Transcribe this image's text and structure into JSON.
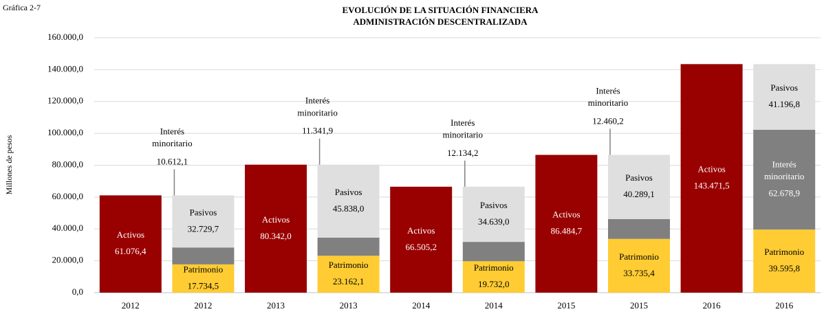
{
  "chart_data": {
    "type": "bar",
    "figure_label": "Gráfica 2-7",
    "title": "EVOLUCIÓN  DE LA SITUACIÓN  FINANCIERA",
    "subtitle": "ADMINISTRACIÓN  DESCENTRALIZADA",
    "ylabel": "Millones  de pesos",
    "stacked": true,
    "categories": [
      "2012",
      "2012",
      "2013",
      "2013",
      "2014",
      "2014",
      "2015",
      "2015",
      "2016",
      "2016"
    ],
    "series": [
      {
        "name": "Activos",
        "color": "#990000",
        "values": [
          61076.4,
          null,
          80342.0,
          null,
          66505.2,
          null,
          86484.7,
          null,
          143471.5,
          null
        ],
        "value_labels": [
          "61.076,4",
          null,
          "80.342,0",
          null,
          "66.505,2",
          null,
          "86.484,7",
          null,
          "143.471,5",
          null
        ]
      },
      {
        "name": "Patrimonio",
        "color": "#ffcc33",
        "values": [
          null,
          17734.5,
          null,
          23162.1,
          null,
          19732.0,
          null,
          33735.4,
          null,
          39595.8
        ],
        "value_labels": [
          null,
          "17.734,5",
          null,
          "23.162,1",
          null,
          "19.732,0",
          null,
          "33.735,4",
          null,
          "39.595,8"
        ]
      },
      {
        "name": "Interés minoritario",
        "color": "#808080",
        "values": [
          null,
          10612.1,
          null,
          11341.9,
          null,
          12134.2,
          null,
          12460.2,
          null,
          62678.9
        ],
        "value_labels": [
          null,
          "10.612,1",
          null,
          "11.341,9",
          null,
          "12.134,2",
          null,
          "12.460,2",
          null,
          "62.678,9"
        ]
      },
      {
        "name": "Pasivos",
        "color": "#e0dfe0",
        "values": [
          null,
          32729.7,
          null,
          45838.0,
          null,
          34639.0,
          null,
          40289.1,
          null,
          41196.8
        ],
        "value_labels": [
          null,
          "32.729,7",
          null,
          "45.838,0",
          null,
          "34.639,0",
          null,
          "40.289,1",
          null,
          "41.196,8"
        ]
      }
    ],
    "ylim": [
      0,
      160000
    ],
    "yticks": [
      {
        "value": 0,
        "label": "0,0"
      },
      {
        "value": 20000,
        "label": "20.000,0"
      },
      {
        "value": 40000,
        "label": "40.000,0"
      },
      {
        "value": 60000,
        "label": "60.000,0"
      },
      {
        "value": 80000,
        "label": "80.000,0"
      },
      {
        "value": 100000,
        "label": "100.000,0"
      },
      {
        "value": 120000,
        "label": "120.000,0"
      },
      {
        "value": 140000,
        "label": "140.000,0"
      },
      {
        "value": 160000,
        "label": "160.000,0"
      }
    ],
    "grid": true
  }
}
